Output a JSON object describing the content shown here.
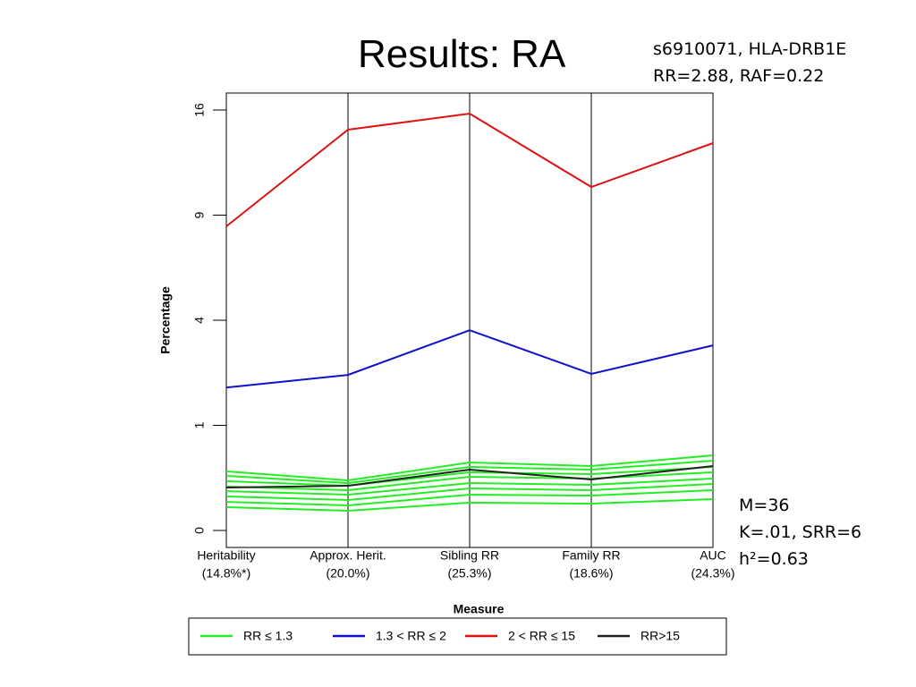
{
  "title": "Results: RA",
  "note_top": [
    "s6910071, HLA-DRB1E",
    "RR=2.88, RAF=0.22"
  ],
  "note_bottom": [
    "M=36",
    "K=.01, SRR=6",
    "h²=0.63"
  ],
  "chart_data": {
    "type": "parallel",
    "x_label": "Measure",
    "y_label": "Percentage",
    "categories": [
      "Heritability",
      "Approx. Herit.",
      "Sibling RR",
      "Family RR",
      "AUC"
    ],
    "category_notes": [
      "(14.8%*)",
      "(20.0%)",
      "(25.3%)",
      "(18.6%)",
      "(24.3%)"
    ],
    "y_scale": "sqrt",
    "ylim": [
      0,
      17.32
    ],
    "yticks": [
      0,
      1,
      4,
      9,
      16
    ],
    "series": [
      {
        "name": "RR ≤ 1.3",
        "color": "#22ee22",
        "lines": [
          [
            0.316,
            0.227,
            0.418,
            0.375,
            0.511
          ],
          [
            0.27,
            0.203,
            0.365,
            0.335,
            0.441
          ],
          [
            0.219,
            0.181,
            0.306,
            0.287,
            0.365
          ],
          [
            0.174,
            0.147,
            0.261,
            0.244,
            0.306
          ],
          [
            0.14,
            0.116,
            0.203,
            0.188,
            0.244
          ],
          [
            0.105,
            0.084,
            0.16,
            0.147,
            0.196
          ],
          [
            0.074,
            0.057,
            0.116,
            0.11,
            0.147
          ],
          [
            0.049,
            0.035,
            0.07,
            0.065,
            0.089
          ]
        ]
      },
      {
        "name": "1.3 < RR ≤ 2",
        "color": "#1111cc",
        "lines": [
          [
            1.85,
            2.19,
            3.63,
            2.22,
            3.1
          ]
        ]
      },
      {
        "name": "2 < RR ≤ 15",
        "color": "#dd1111",
        "lines": [
          [
            8.37,
            14.54,
            15.73,
            10.68,
            13.58
          ]
        ]
      },
      {
        "name": "RR>15",
        "color": "#222222",
        "lines": [
          [
            0.167,
            0.181,
            0.335,
            0.235,
            0.375
          ]
        ]
      }
    ]
  }
}
